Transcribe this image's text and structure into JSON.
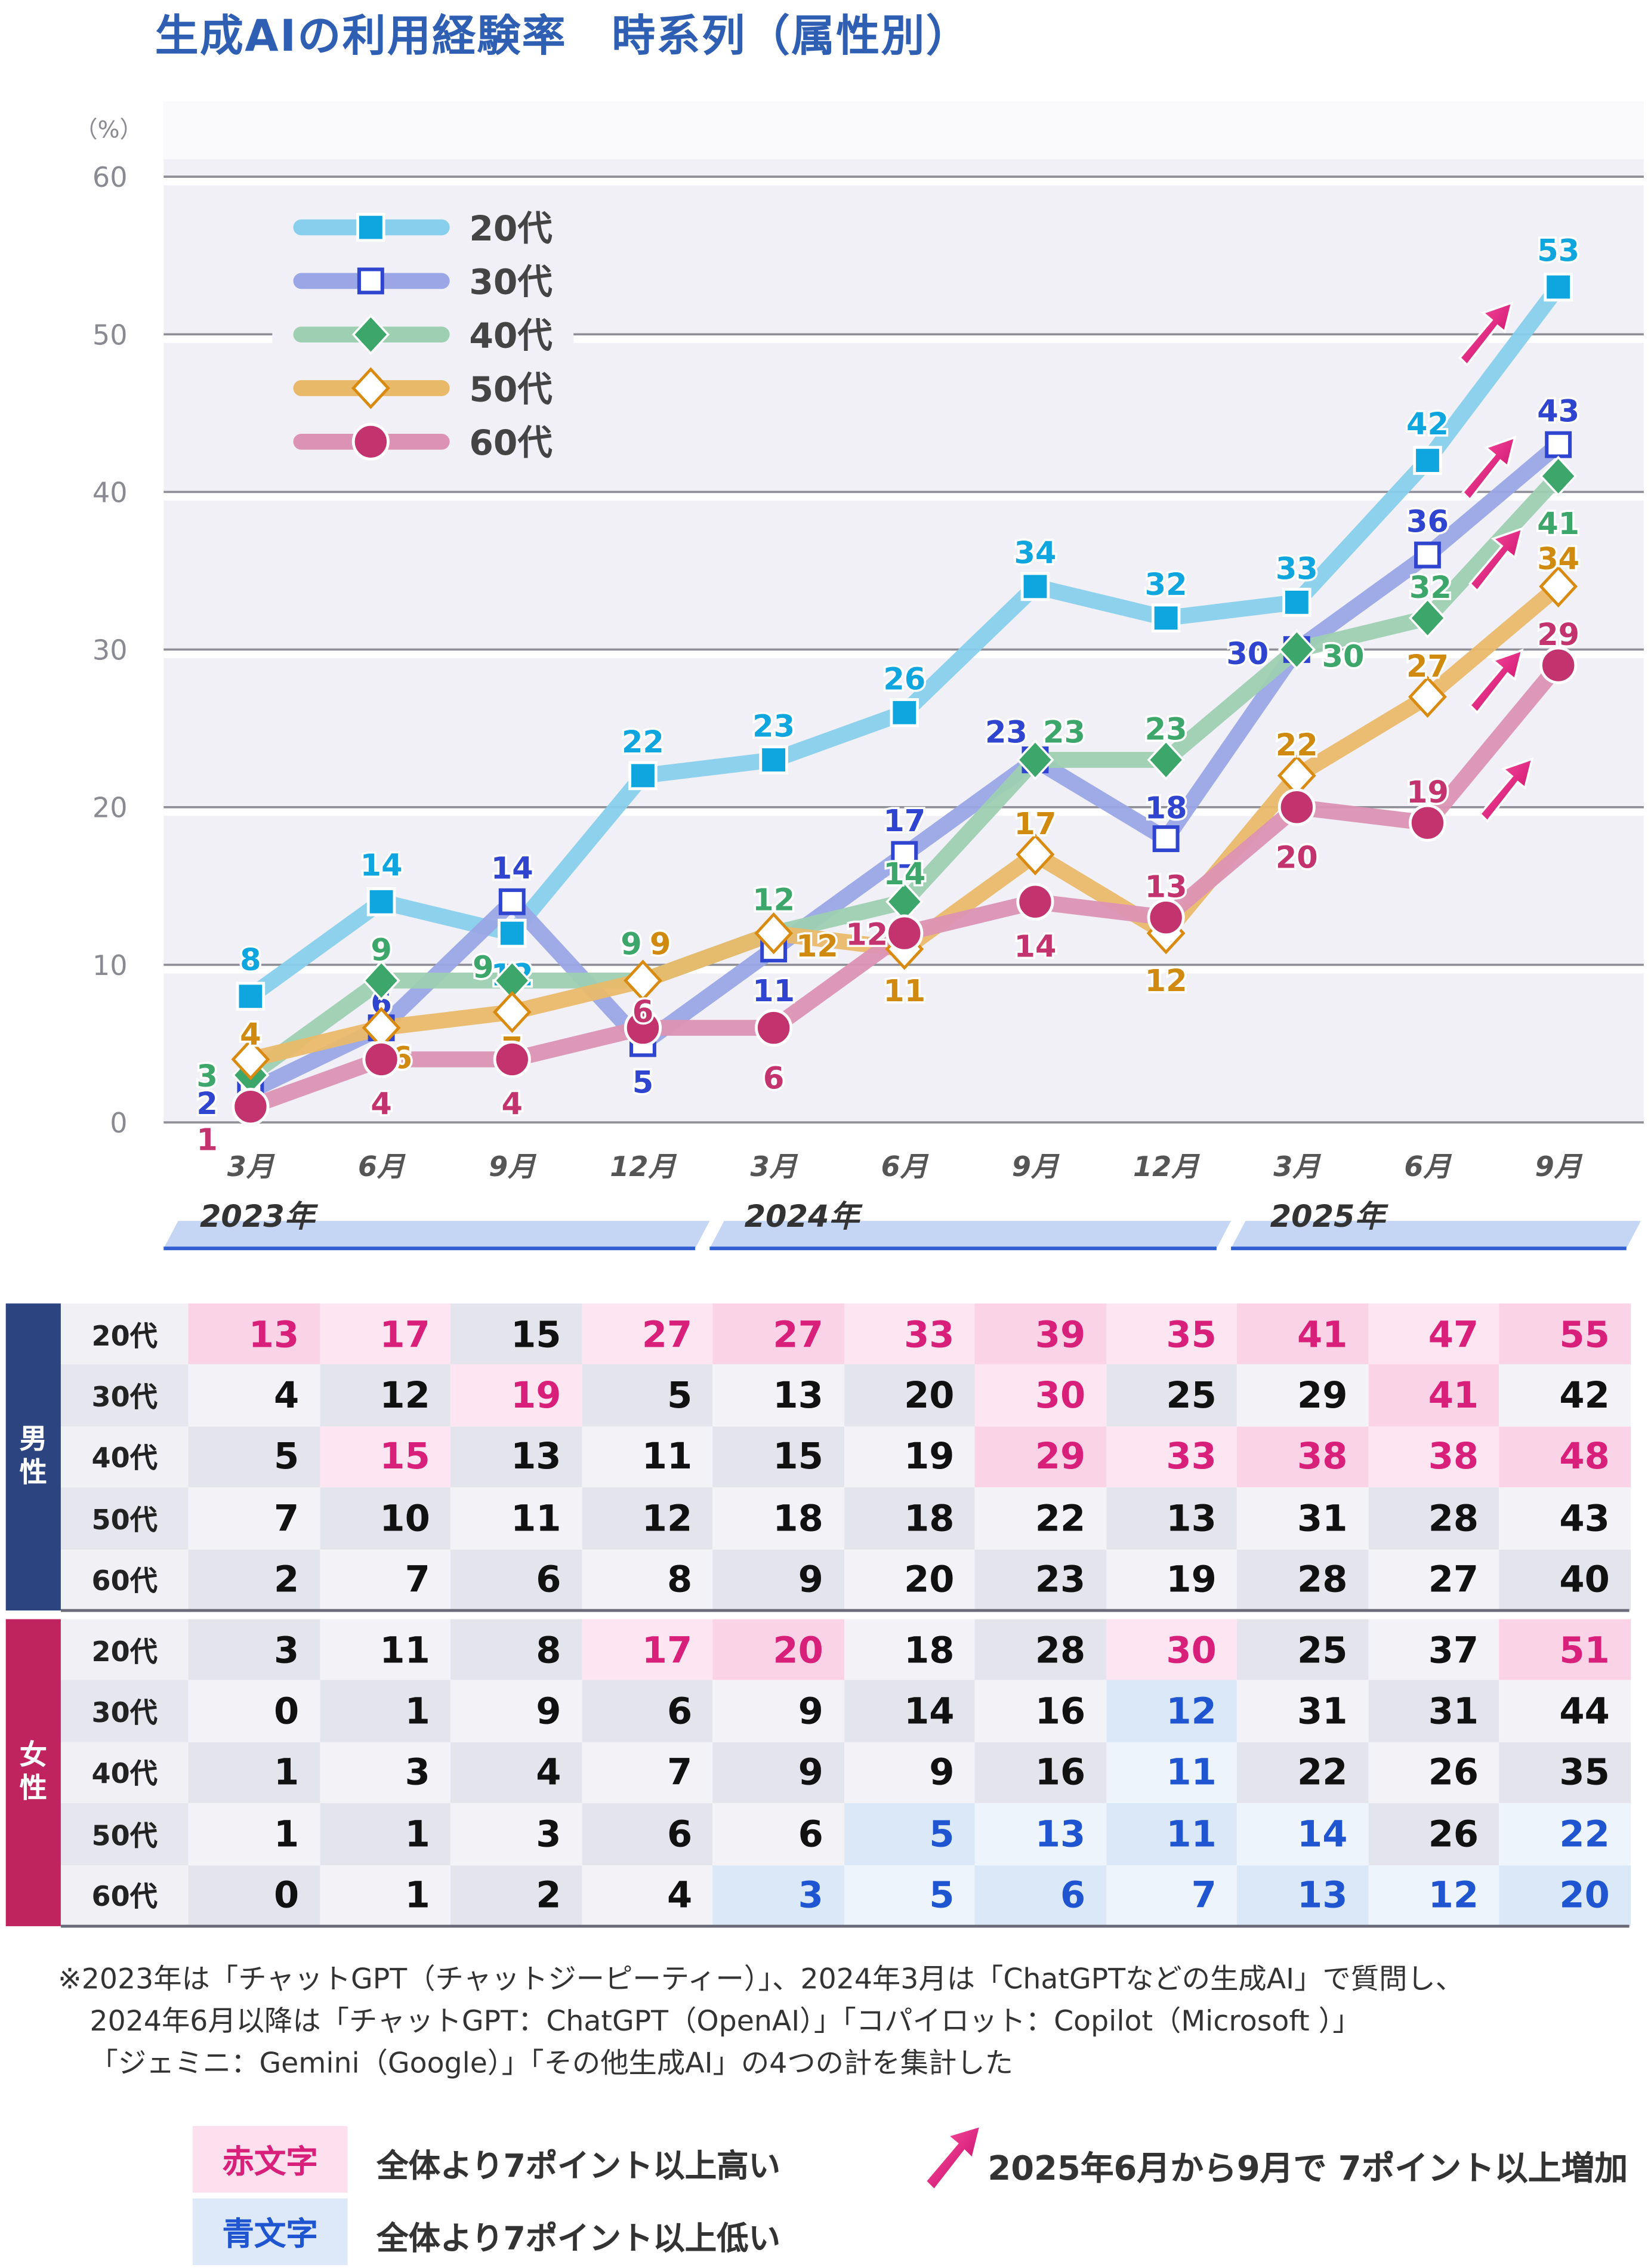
{
  "title": "生成AIの利用経験率　時系列（属性別）",
  "chart_data": {
    "type": "line",
    "ylabel": "（%）",
    "ylim": [
      0,
      60
    ],
    "yticks": [
      0,
      10,
      20,
      30,
      40,
      50,
      60
    ],
    "grid": true,
    "legend_position": "top-left",
    "categories": [
      "3月",
      "6月",
      "9月",
      "12月",
      "3月",
      "6月",
      "9月",
      "12月",
      "3月",
      "6月",
      "9月"
    ],
    "year_labels": [
      "2023年",
      "2024年",
      "2025年"
    ],
    "series": [
      {
        "name": "20代",
        "values": [
          8,
          14,
          12,
          22,
          23,
          26,
          34,
          32,
          33,
          42,
          53
        ],
        "line_color": "#87cfec",
        "marker_color": "#0fa6e0",
        "label_color": "#0fa6e0",
        "marker": "square-filled",
        "increase_arrow": true
      },
      {
        "name": "30代",
        "values": [
          2,
          6,
          14,
          5,
          11,
          17,
          23,
          18,
          30,
          36,
          43
        ],
        "line_color": "#9aa6e6",
        "marker_color": "#2f45d0",
        "label_color": "#2f45d0",
        "marker": "square-open",
        "increase_arrow": true
      },
      {
        "name": "40代",
        "values": [
          3,
          9,
          9,
          9,
          12,
          14,
          23,
          23,
          30,
          32,
          41
        ],
        "line_color": "#9ecfb2",
        "marker_color": "#3da66a",
        "label_color": "#3da66a",
        "marker": "diamond-filled",
        "increase_arrow": true
      },
      {
        "name": "50代",
        "values": [
          4,
          6,
          7,
          9,
          12,
          11,
          17,
          12,
          22,
          27,
          34
        ],
        "line_color": "#e9b96a",
        "marker_color": "#d98a10",
        "label_color": "#d08a10",
        "marker": "diamond-open",
        "increase_arrow": true
      },
      {
        "name": "60代",
        "values": [
          1,
          4,
          4,
          6,
          6,
          12,
          14,
          13,
          20,
          19,
          29
        ],
        "line_color": "#dc92b3",
        "marker_color": "#c3336e",
        "label_color": "#c3336e",
        "marker": "circle-filled",
        "increase_arrow": true
      }
    ]
  },
  "table": {
    "groups": [
      {
        "label": "男性",
        "color": "#2c4580",
        "rows": [
          {
            "age": "20代",
            "values": [
              13,
              17,
              15,
              27,
              27,
              33,
              39,
              35,
              41,
              47,
              55
            ],
            "flags": [
              "r",
              "r",
              "",
              "r",
              "r",
              "r",
              "r",
              "r",
              "r",
              "r",
              "r"
            ]
          },
          {
            "age": "30代",
            "values": [
              4,
              12,
              19,
              5,
              13,
              20,
              30,
              25,
              29,
              41,
              42
            ],
            "flags": [
              "",
              "",
              "r",
              "",
              "",
              "",
              "r",
              "",
              "",
              "r",
              ""
            ]
          },
          {
            "age": "40代",
            "values": [
              5,
              15,
              13,
              11,
              15,
              19,
              29,
              33,
              38,
              38,
              48
            ],
            "flags": [
              "",
              "r",
              "",
              "",
              "",
              "",
              "r",
              "r",
              "r",
              "r",
              "r"
            ]
          },
          {
            "age": "50代",
            "values": [
              7,
              10,
              11,
              12,
              18,
              18,
              22,
              13,
              31,
              28,
              43
            ],
            "flags": [
              "",
              "",
              "",
              "",
              "",
              "",
              "",
              "",
              "",
              "",
              ""
            ]
          },
          {
            "age": "60代",
            "values": [
              2,
              7,
              6,
              8,
              9,
              20,
              23,
              19,
              28,
              27,
              40
            ],
            "flags": [
              "",
              "",
              "",
              "",
              "",
              "",
              "",
              "",
              "",
              "",
              ""
            ]
          }
        ]
      },
      {
        "label": "女性",
        "color": "#c0245f",
        "rows": [
          {
            "age": "20代",
            "values": [
              3,
              11,
              8,
              17,
              20,
              18,
              28,
              30,
              25,
              37,
              51
            ],
            "flags": [
              "",
              "",
              "",
              "r",
              "r",
              "",
              "",
              "r",
              "",
              "",
              "r"
            ]
          },
          {
            "age": "30代",
            "values": [
              0,
              1,
              9,
              6,
              9,
              14,
              16,
              12,
              31,
              31,
              44
            ],
            "flags": [
              "",
              "",
              "",
              "",
              "",
              "",
              "",
              "b",
              "",
              "",
              ""
            ]
          },
          {
            "age": "40代",
            "values": [
              1,
              3,
              4,
              7,
              9,
              9,
              16,
              11,
              22,
              26,
              35
            ],
            "flags": [
              "",
              "",
              "",
              "",
              "",
              "",
              "",
              "b",
              "",
              "",
              ""
            ]
          },
          {
            "age": "50代",
            "values": [
              1,
              1,
              3,
              6,
              6,
              5,
              13,
              11,
              14,
              26,
              22
            ],
            "flags": [
              "",
              "",
              "",
              "",
              "",
              "b",
              "b",
              "b",
              "b",
              "",
              "b"
            ]
          },
          {
            "age": "60代",
            "values": [
              0,
              1,
              2,
              4,
              3,
              5,
              6,
              7,
              13,
              12,
              20
            ],
            "flags": [
              "",
              "",
              "",
              "",
              "b",
              "b",
              "b",
              "b",
              "b",
              "b",
              "b"
            ]
          }
        ]
      }
    ]
  },
  "notes": [
    "※2023年は「チャットGPT（チャットジーピーティー）」、2024年3月は「ChatGPTなどの生成AI」で質問し、",
    "2024年6月以降は「チャットGPT：ChatGPT（OpenAI）」「コパイロット：Copilot（Microsoft ）」",
    "「ジェミニ：Gemini（Google）」「その他生成AI」の4つの計を集計した"
  ],
  "legend": {
    "red_label": "赤文字",
    "red_text": "全体より7ポイント以上高い",
    "blue_label": "青文字",
    "blue_text": "全体より7ポイント以上低い",
    "arrow_text": "2025年6月から9月で 7ポイント以上増加",
    "red_color": "#d81f7a",
    "blue_color": "#1f55d0"
  }
}
